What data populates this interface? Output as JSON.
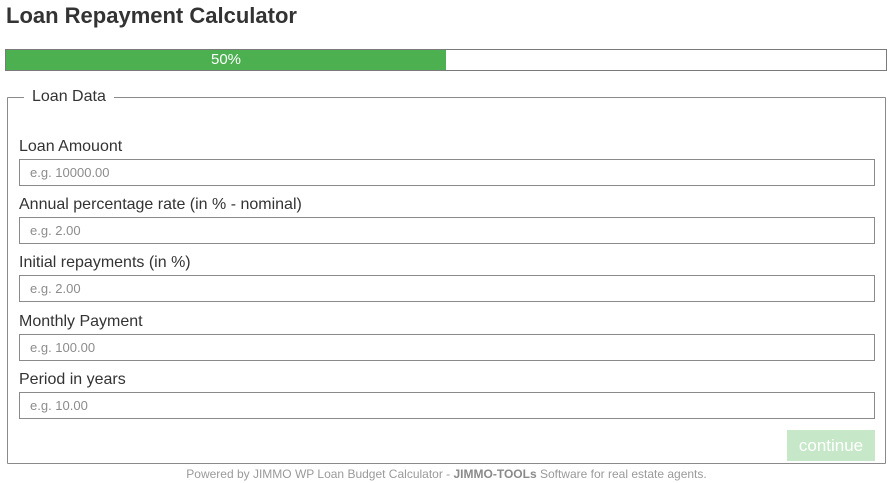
{
  "page": {
    "title": "Loan Repayment Calculator"
  },
  "progress": {
    "value": 0.5,
    "label": "50%",
    "color": "#4caf50"
  },
  "form": {
    "legend": "Loan Data",
    "fields": [
      {
        "label": "Loan Amouont",
        "placeholder": "e.g. 10000.00",
        "value": ""
      },
      {
        "label": "Annual percentage rate (in % - nominal)",
        "placeholder": "e.g. 2.00",
        "value": ""
      },
      {
        "label": "Initial repayments (in %)",
        "placeholder": "e.g. 2.00",
        "value": ""
      },
      {
        "label": "Monthly Payment",
        "placeholder": "e.g. 100.00",
        "value": ""
      },
      {
        "label": "Period in years",
        "placeholder": "e.g. 10.00",
        "value": ""
      }
    ],
    "continue_label": "continue",
    "continue_color": "#c7e8c8"
  },
  "footer": {
    "prefix": "Powered by JIMMO WP Loan Budget Calculator - ",
    "brand": "JIMMO-TOOLs",
    "suffix": " Software for real estate agents."
  }
}
